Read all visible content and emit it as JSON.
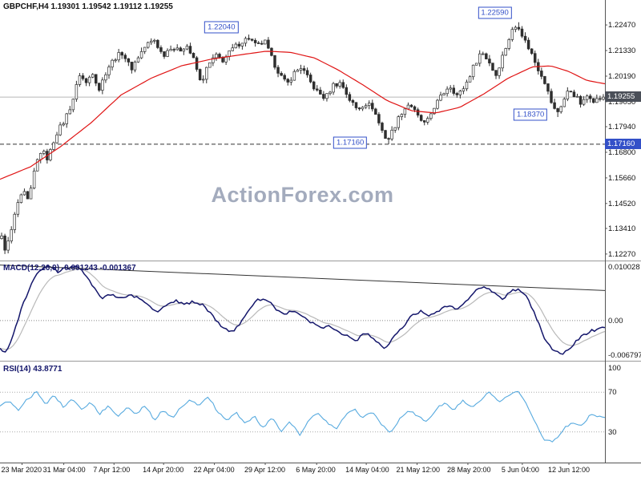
{
  "watermark": {
    "text": "ActionForex.com"
  },
  "colors": {
    "candle": "#2e2e2e",
    "candle_up_fill": "#ffffff",
    "ma_line": "#e01515",
    "macd_line": "#14166b",
    "macd_signal": "#b9b9b9",
    "rsi_line": "#57aadf",
    "annotation_blue": "#3350c8",
    "current_tag_bg": "#4a4f58",
    "support_tag_bg": "#3350c8",
    "current_line": "#b8b8b8",
    "support_line": "#333333",
    "trendline": "#333333",
    "level_dotted": "#aaaaaa",
    "separator": "#999999",
    "axis_line": "#555555",
    "watermark": "#9aa2b6",
    "axis_text": "#111111"
  },
  "chart_data": [
    {
      "panel": "price",
      "type": "candlestick",
      "title": "GBPCHF,H4 1.19301 1.19542 1.19112 1.19255",
      "symbol": "GBPCHF",
      "timeframe": "H4",
      "ohlc": {
        "open": 1.19301,
        "high": 1.19542,
        "low": 1.19112,
        "close": 1.19255
      },
      "current_price": 1.19255,
      "support_level": 1.1716,
      "y_range": [
        1.1198,
        1.2358
      ],
      "y_ticks": [
        1.2247,
        1.2133,
        1.2019,
        1.1905,
        1.1794,
        1.168,
        1.1566,
        1.1452,
        1.1341,
        1.1227
      ],
      "bars": 186,
      "annotations": [
        {
          "text": "1.22040",
          "x": 0.366,
          "price": 1.2238
        },
        {
          "text": "1.22590",
          "x": 0.818,
          "price": 1.23
        },
        {
          "text": "1.18370",
          "x": 0.877,
          "price": 1.1846
        },
        {
          "text": "1.17160",
          "x": 0.579,
          "price": 1.1722
        }
      ],
      "pin_highs": [
        [
          0.411,
          1.2204
        ],
        [
          0.858,
          1.2259
        ]
      ],
      "pin_lows": [
        [
          0.007,
          1.1227
        ],
        [
          0.641,
          1.1716
        ],
        [
          0.922,
          1.1837
        ]
      ],
      "close_keypoints": [
        [
          0,
          1.13
        ],
        [
          0.007,
          1.124
        ],
        [
          0.016,
          1.133
        ],
        [
          0.026,
          1.145
        ],
        [
          0.037,
          1.15
        ],
        [
          0.045,
          1.1455
        ],
        [
          0.056,
          1.162
        ],
        [
          0.066,
          1.169
        ],
        [
          0.077,
          1.165
        ],
        [
          0.09,
          1.176
        ],
        [
          0.103,
          1.1815
        ],
        [
          0.117,
          1.19
        ],
        [
          0.13,
          1.203
        ],
        [
          0.14,
          1.1985
        ],
        [
          0.151,
          1.204
        ],
        [
          0.162,
          1.196
        ],
        [
          0.175,
          1.205
        ],
        [
          0.188,
          1.21
        ],
        [
          0.201,
          1.2125
        ],
        [
          0.215,
          1.205
        ],
        [
          0.228,
          1.211
        ],
        [
          0.241,
          1.216
        ],
        [
          0.254,
          1.218
        ],
        [
          0.268,
          1.211
        ],
        [
          0.281,
          1.215
        ],
        [
          0.294,
          1.213
        ],
        [
          0.307,
          1.216
        ],
        [
          0.321,
          1.208
        ],
        [
          0.331,
          1.1985
        ],
        [
          0.342,
          1.206
        ],
        [
          0.355,
          1.211
        ],
        [
          0.368,
          1.209
        ],
        [
          0.384,
          1.214
        ],
        [
          0.397,
          1.217
        ],
        [
          0.411,
          1.219
        ],
        [
          0.424,
          1.215
        ],
        [
          0.437,
          1.2175
        ],
        [
          0.45,
          1.209
        ],
        [
          0.464,
          1.202
        ],
        [
          0.474,
          1.198
        ],
        [
          0.485,
          1.203
        ],
        [
          0.498,
          1.206
        ],
        [
          0.511,
          1.2
        ],
        [
          0.524,
          1.195
        ],
        [
          0.538,
          1.192
        ],
        [
          0.551,
          1.198
        ],
        [
          0.564,
          1.199
        ],
        [
          0.577,
          1.192
        ],
        [
          0.591,
          1.187
        ],
        [
          0.604,
          1.19
        ],
        [
          0.617,
          1.188
        ],
        [
          0.63,
          1.179
        ],
        [
          0.641,
          1.173
        ],
        [
          0.652,
          1.179
        ],
        [
          0.665,
          1.186
        ],
        [
          0.678,
          1.19
        ],
        [
          0.691,
          1.184
        ],
        [
          0.705,
          1.18
        ],
        [
          0.718,
          1.188
        ],
        [
          0.731,
          1.193
        ],
        [
          0.744,
          1.198
        ],
        [
          0.758,
          1.193
        ],
        [
          0.771,
          1.198
        ],
        [
          0.784,
          1.206
        ],
        [
          0.797,
          1.213
        ],
        [
          0.811,
          1.208
        ],
        [
          0.821,
          1.202
        ],
        [
          0.834,
          1.212
        ],
        [
          0.848,
          1.222
        ],
        [
          0.858,
          1.225
        ],
        [
          0.869,
          1.218
        ],
        [
          0.879,
          1.213
        ],
        [
          0.89,
          1.206
        ],
        [
          0.901,
          1.201
        ],
        [
          0.911,
          1.192
        ],
        [
          0.922,
          1.185
        ],
        [
          0.932,
          1.19
        ],
        [
          0.943,
          1.196
        ],
        [
          0.954,
          1.193
        ],
        [
          0.964,
          1.189
        ],
        [
          0.975,
          1.194
        ],
        [
          0.985,
          1.191
        ],
        [
          1,
          1.19255
        ]
      ],
      "ma_keypoints": [
        [
          0,
          1.156
        ],
        [
          0.05,
          1.1615
        ],
        [
          0.1,
          1.1705
        ],
        [
          0.15,
          1.181
        ],
        [
          0.2,
          1.1935
        ],
        [
          0.25,
          1.201
        ],
        [
          0.3,
          1.2065
        ],
        [
          0.35,
          1.2095
        ],
        [
          0.4,
          1.2115
        ],
        [
          0.44,
          1.213
        ],
        [
          0.48,
          1.2125
        ],
        [
          0.52,
          1.21
        ],
        [
          0.56,
          1.2045
        ],
        [
          0.6,
          1.198
        ],
        [
          0.64,
          1.191
        ],
        [
          0.68,
          1.1865
        ],
        [
          0.72,
          1.1855
        ],
        [
          0.76,
          1.188
        ],
        [
          0.8,
          1.194
        ],
        [
          0.84,
          1.201
        ],
        [
          0.88,
          1.206
        ],
        [
          0.91,
          1.2065
        ],
        [
          0.94,
          1.204
        ],
        [
          0.97,
          1.2
        ],
        [
          1,
          1.1985
        ]
      ],
      "x_labels": [
        {
          "text": "23 Mar 2020",
          "x": 0.002
        },
        {
          "text": "31 Mar 04:00",
          "x": 0.071
        },
        {
          "text": "7 Apr 12:00",
          "x": 0.154
        },
        {
          "text": "14 Apr 20:00",
          "x": 0.236
        },
        {
          "text": "22 Apr 04:00",
          "x": 0.32
        },
        {
          "text": "29 Apr 12:00",
          "x": 0.404
        },
        {
          "text": "6 May 20:00",
          "x": 0.489
        },
        {
          "text": "14 May 04:00",
          "x": 0.571
        },
        {
          "text": "21 May 12:00",
          "x": 0.655
        },
        {
          "text": "28 May 20:00",
          "x": 0.739
        },
        {
          "text": "5 Jun 04:00",
          "x": 0.829
        },
        {
          "text": "12 Jun 12:00",
          "x": 0.906
        }
      ]
    },
    {
      "panel": "macd",
      "type": "line",
      "label": "MACD(12,26,9) -0.001243 -0.001367",
      "main_value": -0.001243,
      "signal_value": -0.001367,
      "y_range": [
        -0.0068,
        0.0101
      ],
      "zero_level": 0.0,
      "axis_labels": [
        {
          "text": "0.010028",
          "value": 0.010028
        },
        {
          "text": "0.00",
          "value": 0.0
        },
        {
          "text": "-0.006797",
          "value": -0.006797
        }
      ],
      "trendline": {
        "from": [
          0,
          0.0096
        ],
        "to": [
          1,
          0.0052
        ]
      },
      "macd_keypoints": [
        [
          0,
          -0.005
        ],
        [
          0.008,
          -0.0058
        ],
        [
          0.02,
          -0.003
        ],
        [
          0.035,
          0.002
        ],
        [
          0.05,
          0.006
        ],
        [
          0.065,
          0.0088
        ],
        [
          0.08,
          0.0094
        ],
        [
          0.095,
          0.0085
        ],
        [
          0.11,
          0.0091
        ],
        [
          0.125,
          0.0093
        ],
        [
          0.14,
          0.0082
        ],
        [
          0.155,
          0.0058
        ],
        [
          0.17,
          0.0038
        ],
        [
          0.185,
          0.0047
        ],
        [
          0.2,
          0.0038
        ],
        [
          0.215,
          0.0044
        ],
        [
          0.23,
          0.004
        ],
        [
          0.245,
          0.0028
        ],
        [
          0.26,
          0.0015
        ],
        [
          0.275,
          0.0026
        ],
        [
          0.29,
          0.0034
        ],
        [
          0.305,
          0.0028
        ],
        [
          0.32,
          0.0033
        ],
        [
          0.335,
          0.0028
        ],
        [
          0.35,
          0.001
        ],
        [
          0.365,
          -0.0008
        ],
        [
          0.38,
          -0.002
        ],
        [
          0.395,
          -0.001
        ],
        [
          0.41,
          0.0015
        ],
        [
          0.425,
          0.0035
        ],
        [
          0.44,
          0.0038
        ],
        [
          0.455,
          0.0022
        ],
        [
          0.47,
          0.001
        ],
        [
          0.485,
          0.0018
        ],
        [
          0.5,
          0.0008
        ],
        [
          0.515,
          -0.0004
        ],
        [
          0.53,
          -0.0014
        ],
        [
          0.545,
          -0.0008
        ],
        [
          0.56,
          -0.0018
        ],
        [
          0.575,
          -0.0028
        ],
        [
          0.59,
          -0.0034
        ],
        [
          0.605,
          -0.002
        ],
        [
          0.62,
          -0.0035
        ],
        [
          0.635,
          -0.0048
        ],
        [
          0.65,
          -0.003
        ],
        [
          0.665,
          -0.0012
        ],
        [
          0.68,
          0.0008
        ],
        [
          0.695,
          0.0016
        ],
        [
          0.71,
          0.0008
        ],
        [
          0.725,
          0.0018
        ],
        [
          0.74,
          0.0024
        ],
        [
          0.755,
          0.002
        ],
        [
          0.77,
          0.0032
        ],
        [
          0.785,
          0.005
        ],
        [
          0.8,
          0.006
        ],
        [
          0.815,
          0.005
        ],
        [
          0.83,
          0.0038
        ],
        [
          0.845,
          0.005
        ],
        [
          0.858,
          0.0056
        ],
        [
          0.87,
          0.0042
        ],
        [
          0.885,
          0.001
        ],
        [
          0.9,
          -0.003
        ],
        [
          0.915,
          -0.0052
        ],
        [
          0.93,
          -0.0058
        ],
        [
          0.945,
          -0.0045
        ],
        [
          0.96,
          -0.0028
        ],
        [
          0.975,
          -0.0018
        ],
        [
          1,
          -0.001243
        ]
      ]
    },
    {
      "panel": "rsi",
      "type": "line",
      "label": "RSI(14) 43.8771",
      "current_value": 43.8771,
      "y_range": [
        0,
        100
      ],
      "y_ticks": [
        100,
        70,
        30
      ],
      "levels": [
        70,
        30
      ],
      "rsi_keypoints": [
        [
          0,
          55
        ],
        [
          0.015,
          62
        ],
        [
          0.03,
          52
        ],
        [
          0.045,
          63
        ],
        [
          0.06,
          70
        ],
        [
          0.075,
          58
        ],
        [
          0.09,
          67
        ],
        [
          0.105,
          55
        ],
        [
          0.12,
          64
        ],
        [
          0.135,
          52
        ],
        [
          0.15,
          60
        ],
        [
          0.165,
          48
        ],
        [
          0.18,
          57
        ],
        [
          0.195,
          45
        ],
        [
          0.21,
          56
        ],
        [
          0.225,
          47
        ],
        [
          0.24,
          57
        ],
        [
          0.255,
          42
        ],
        [
          0.27,
          52
        ],
        [
          0.285,
          44
        ],
        [
          0.3,
          55
        ],
        [
          0.315,
          62
        ],
        [
          0.33,
          57
        ],
        [
          0.345,
          65
        ],
        [
          0.36,
          50
        ],
        [
          0.375,
          42
        ],
        [
          0.39,
          50
        ],
        [
          0.405,
          38
        ],
        [
          0.42,
          46
        ],
        [
          0.435,
          34
        ],
        [
          0.45,
          44
        ],
        [
          0.465,
          30
        ],
        [
          0.48,
          40
        ],
        [
          0.495,
          27
        ],
        [
          0.51,
          42
        ],
        [
          0.525,
          50
        ],
        [
          0.54,
          40
        ],
        [
          0.555,
          33
        ],
        [
          0.57,
          46
        ],
        [
          0.585,
          54
        ],
        [
          0.6,
          44
        ],
        [
          0.615,
          50
        ],
        [
          0.63,
          38
        ],
        [
          0.645,
          28
        ],
        [
          0.66,
          42
        ],
        [
          0.675,
          52
        ],
        [
          0.69,
          46
        ],
        [
          0.705,
          40
        ],
        [
          0.72,
          52
        ],
        [
          0.735,
          60
        ],
        [
          0.75,
          52
        ],
        [
          0.765,
          62
        ],
        [
          0.78,
          55
        ],
        [
          0.795,
          63
        ],
        [
          0.81,
          70
        ],
        [
          0.825,
          60
        ],
        [
          0.84,
          67
        ],
        [
          0.855,
          71
        ],
        [
          0.87,
          58
        ],
        [
          0.885,
          40
        ],
        [
          0.9,
          22
        ],
        [
          0.915,
          20
        ],
        [
          0.93,
          32
        ],
        [
          0.945,
          40
        ],
        [
          0.96,
          35
        ],
        [
          0.975,
          47
        ],
        [
          1,
          43.8771
        ]
      ]
    }
  ]
}
